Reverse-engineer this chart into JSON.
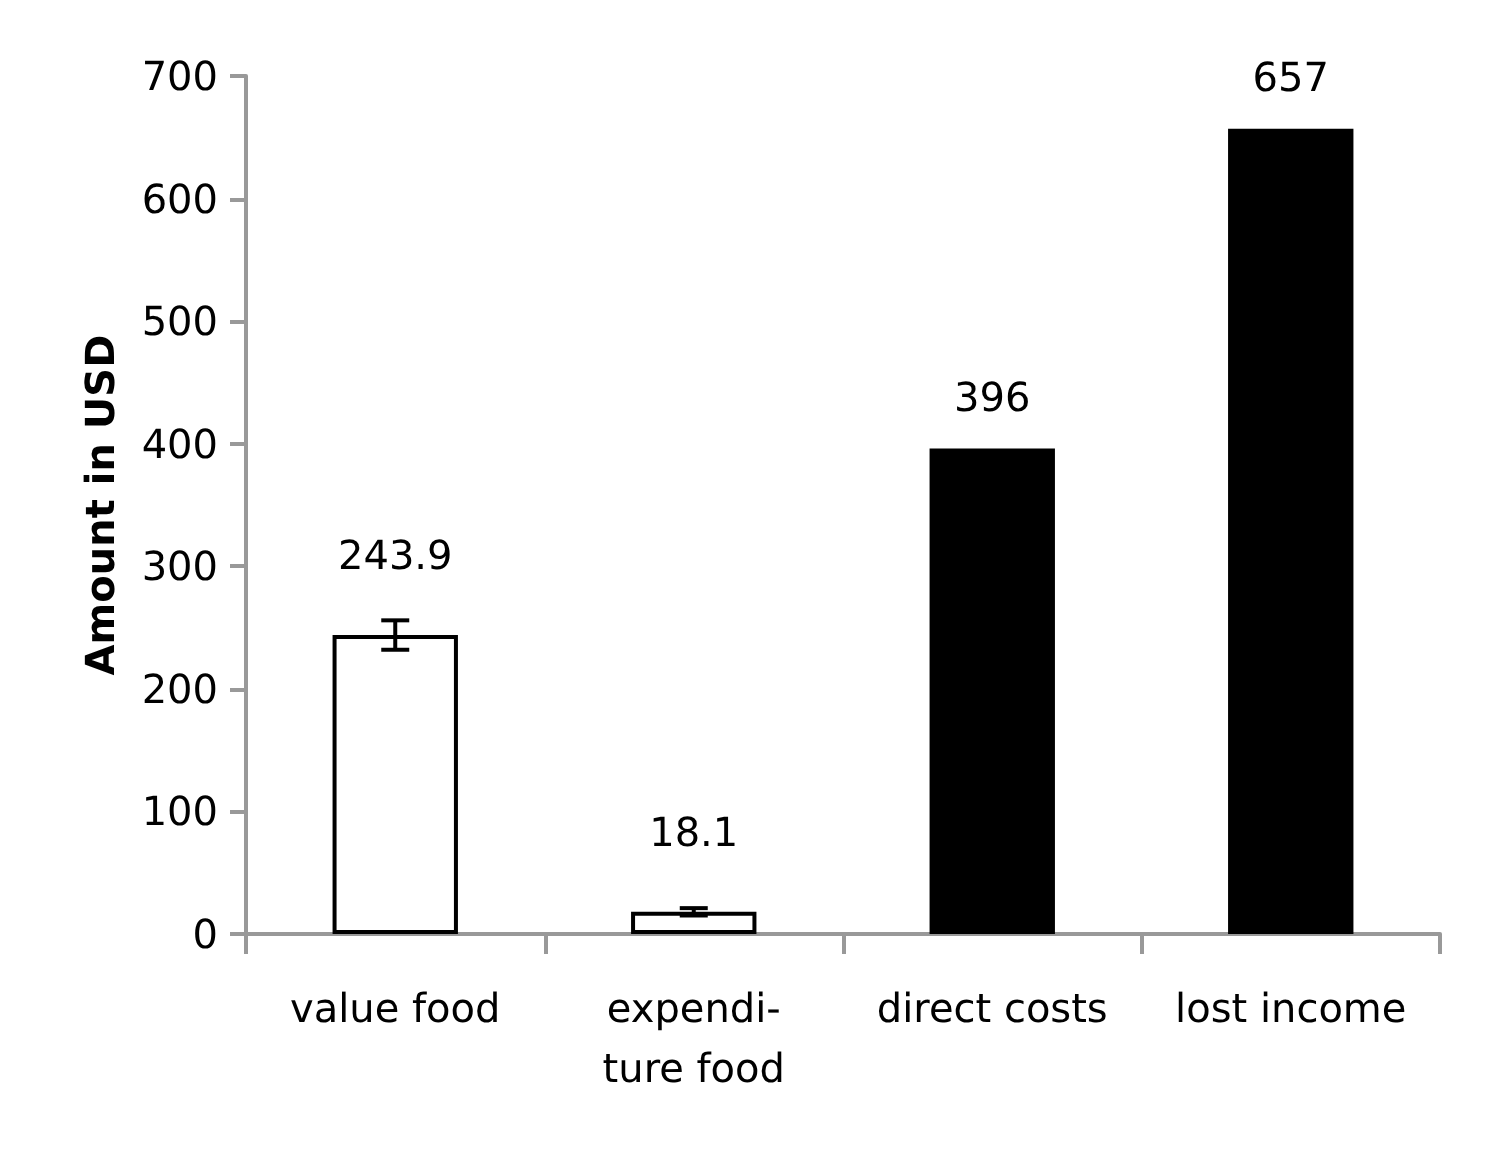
{
  "chart_data": {
    "type": "bar",
    "ylabel": "Amount in USD",
    "categories": [
      "value food",
      "expendi-\nture food",
      "direct costs",
      "lost income"
    ],
    "values": [
      243.9,
      18.1,
      396,
      657
    ],
    "colors": [
      "#ffffff",
      "#ffffff",
      "#000000",
      "#000000"
    ],
    "errors": [
      12,
      3,
      null,
      null
    ],
    "ylim": [
      0,
      700
    ],
    "yticks": [
      0,
      100,
      200,
      300,
      400,
      500,
      600,
      700
    ],
    "grid": false,
    "data_labels": true
  }
}
